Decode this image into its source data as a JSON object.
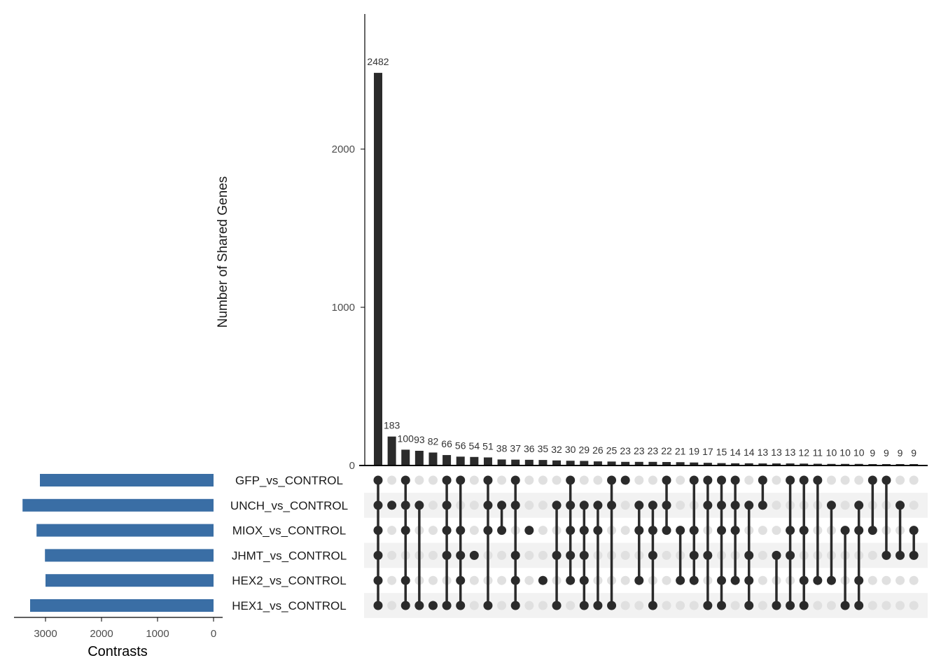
{
  "chart_data": {
    "type": "upset",
    "ylabel": "Number of Shared Genes",
    "set_size_xlabel": "Contrasts",
    "ylim": [
      0,
      2850
    ],
    "yticks": [
      0,
      1000,
      2000
    ],
    "set_size_ticks": [
      3000,
      2000,
      1000,
      0
    ],
    "set_size_xlim": [
      3600,
      0
    ],
    "colors": {
      "bar": "#2b2b2b",
      "set_bar": "#3a6ea5",
      "dot_on": "#2b2b2b",
      "dot_off": "#e0e0e0",
      "stripe": "#f2f2f2"
    },
    "sets": [
      {
        "name": "GFP_vs_CONTROL",
        "size": 3100
      },
      {
        "name": "UNCH_vs_CONTROL",
        "size": 3410
      },
      {
        "name": "MIOX_vs_CONTROL",
        "size": 3160
      },
      {
        "name": "JHMT_vs_CONTROL",
        "size": 3010
      },
      {
        "name": "HEX2_vs_CONTROL",
        "size": 3000
      },
      {
        "name": "HEX1_vs_CONTROL",
        "size": 3275
      }
    ],
    "intersections": [
      {
        "value": 2482,
        "sets": [
          0,
          1,
          2,
          3,
          4,
          5
        ]
      },
      {
        "value": 183,
        "sets": [
          1
        ]
      },
      {
        "value": 100,
        "sets": [
          0,
          1,
          2,
          4,
          5
        ]
      },
      {
        "value": 93,
        "sets": [
          1,
          5
        ]
      },
      {
        "value": 82,
        "sets": [
          5
        ]
      },
      {
        "value": 66,
        "sets": [
          0,
          1,
          2,
          3,
          5
        ]
      },
      {
        "value": 56,
        "sets": [
          0,
          2,
          3,
          4,
          5
        ]
      },
      {
        "value": 54,
        "sets": [
          3
        ]
      },
      {
        "value": 51,
        "sets": [
          0,
          1,
          2,
          5
        ]
      },
      {
        "value": 38,
        "sets": [
          1,
          2
        ]
      },
      {
        "value": 37,
        "sets": [
          0,
          1,
          3,
          4,
          5
        ]
      },
      {
        "value": 36,
        "sets": [
          2
        ]
      },
      {
        "value": 35,
        "sets": [
          4
        ]
      },
      {
        "value": 32,
        "sets": [
          1,
          3,
          5
        ]
      },
      {
        "value": 30,
        "sets": [
          0,
          1,
          2,
          3,
          4
        ]
      },
      {
        "value": 29,
        "sets": [
          1,
          2,
          3,
          4,
          5
        ]
      },
      {
        "value": 26,
        "sets": [
          1,
          2,
          5
        ]
      },
      {
        "value": 25,
        "sets": [
          0,
          1,
          5
        ]
      },
      {
        "value": 23,
        "sets": [
          0
        ]
      },
      {
        "value": 23,
        "sets": [
          1,
          2,
          4
        ]
      },
      {
        "value": 23,
        "sets": [
          1,
          2,
          3,
          5
        ]
      },
      {
        "value": 22,
        "sets": [
          0,
          1,
          2
        ]
      },
      {
        "value": 21,
        "sets": [
          2,
          4
        ]
      },
      {
        "value": 19,
        "sets": [
          0,
          2,
          3,
          4
        ]
      },
      {
        "value": 17,
        "sets": [
          0,
          1,
          3,
          5
        ]
      },
      {
        "value": 15,
        "sets": [
          0,
          1,
          2,
          4,
          5
        ]
      },
      {
        "value": 14,
        "sets": [
          0,
          1,
          2,
          4
        ]
      },
      {
        "value": 14,
        "sets": [
          1,
          3,
          4,
          5
        ]
      },
      {
        "value": 13,
        "sets": [
          0,
          1
        ]
      },
      {
        "value": 13,
        "sets": [
          3,
          5
        ]
      },
      {
        "value": 13,
        "sets": [
          0,
          2,
          3,
          5
        ]
      },
      {
        "value": 12,
        "sets": [
          0,
          2,
          4,
          5
        ]
      },
      {
        "value": 11,
        "sets": [
          0,
          4
        ]
      },
      {
        "value": 10,
        "sets": [
          1,
          4
        ]
      },
      {
        "value": 10,
        "sets": [
          2,
          5
        ]
      },
      {
        "value": 10,
        "sets": [
          1,
          2,
          4,
          5
        ]
      },
      {
        "value": 9,
        "sets": [
          0,
          2
        ]
      },
      {
        "value": 9,
        "sets": [
          0,
          3
        ]
      },
      {
        "value": 9,
        "sets": [
          1,
          3
        ]
      },
      {
        "value": 9,
        "sets": [
          2,
          3
        ]
      }
    ]
  }
}
